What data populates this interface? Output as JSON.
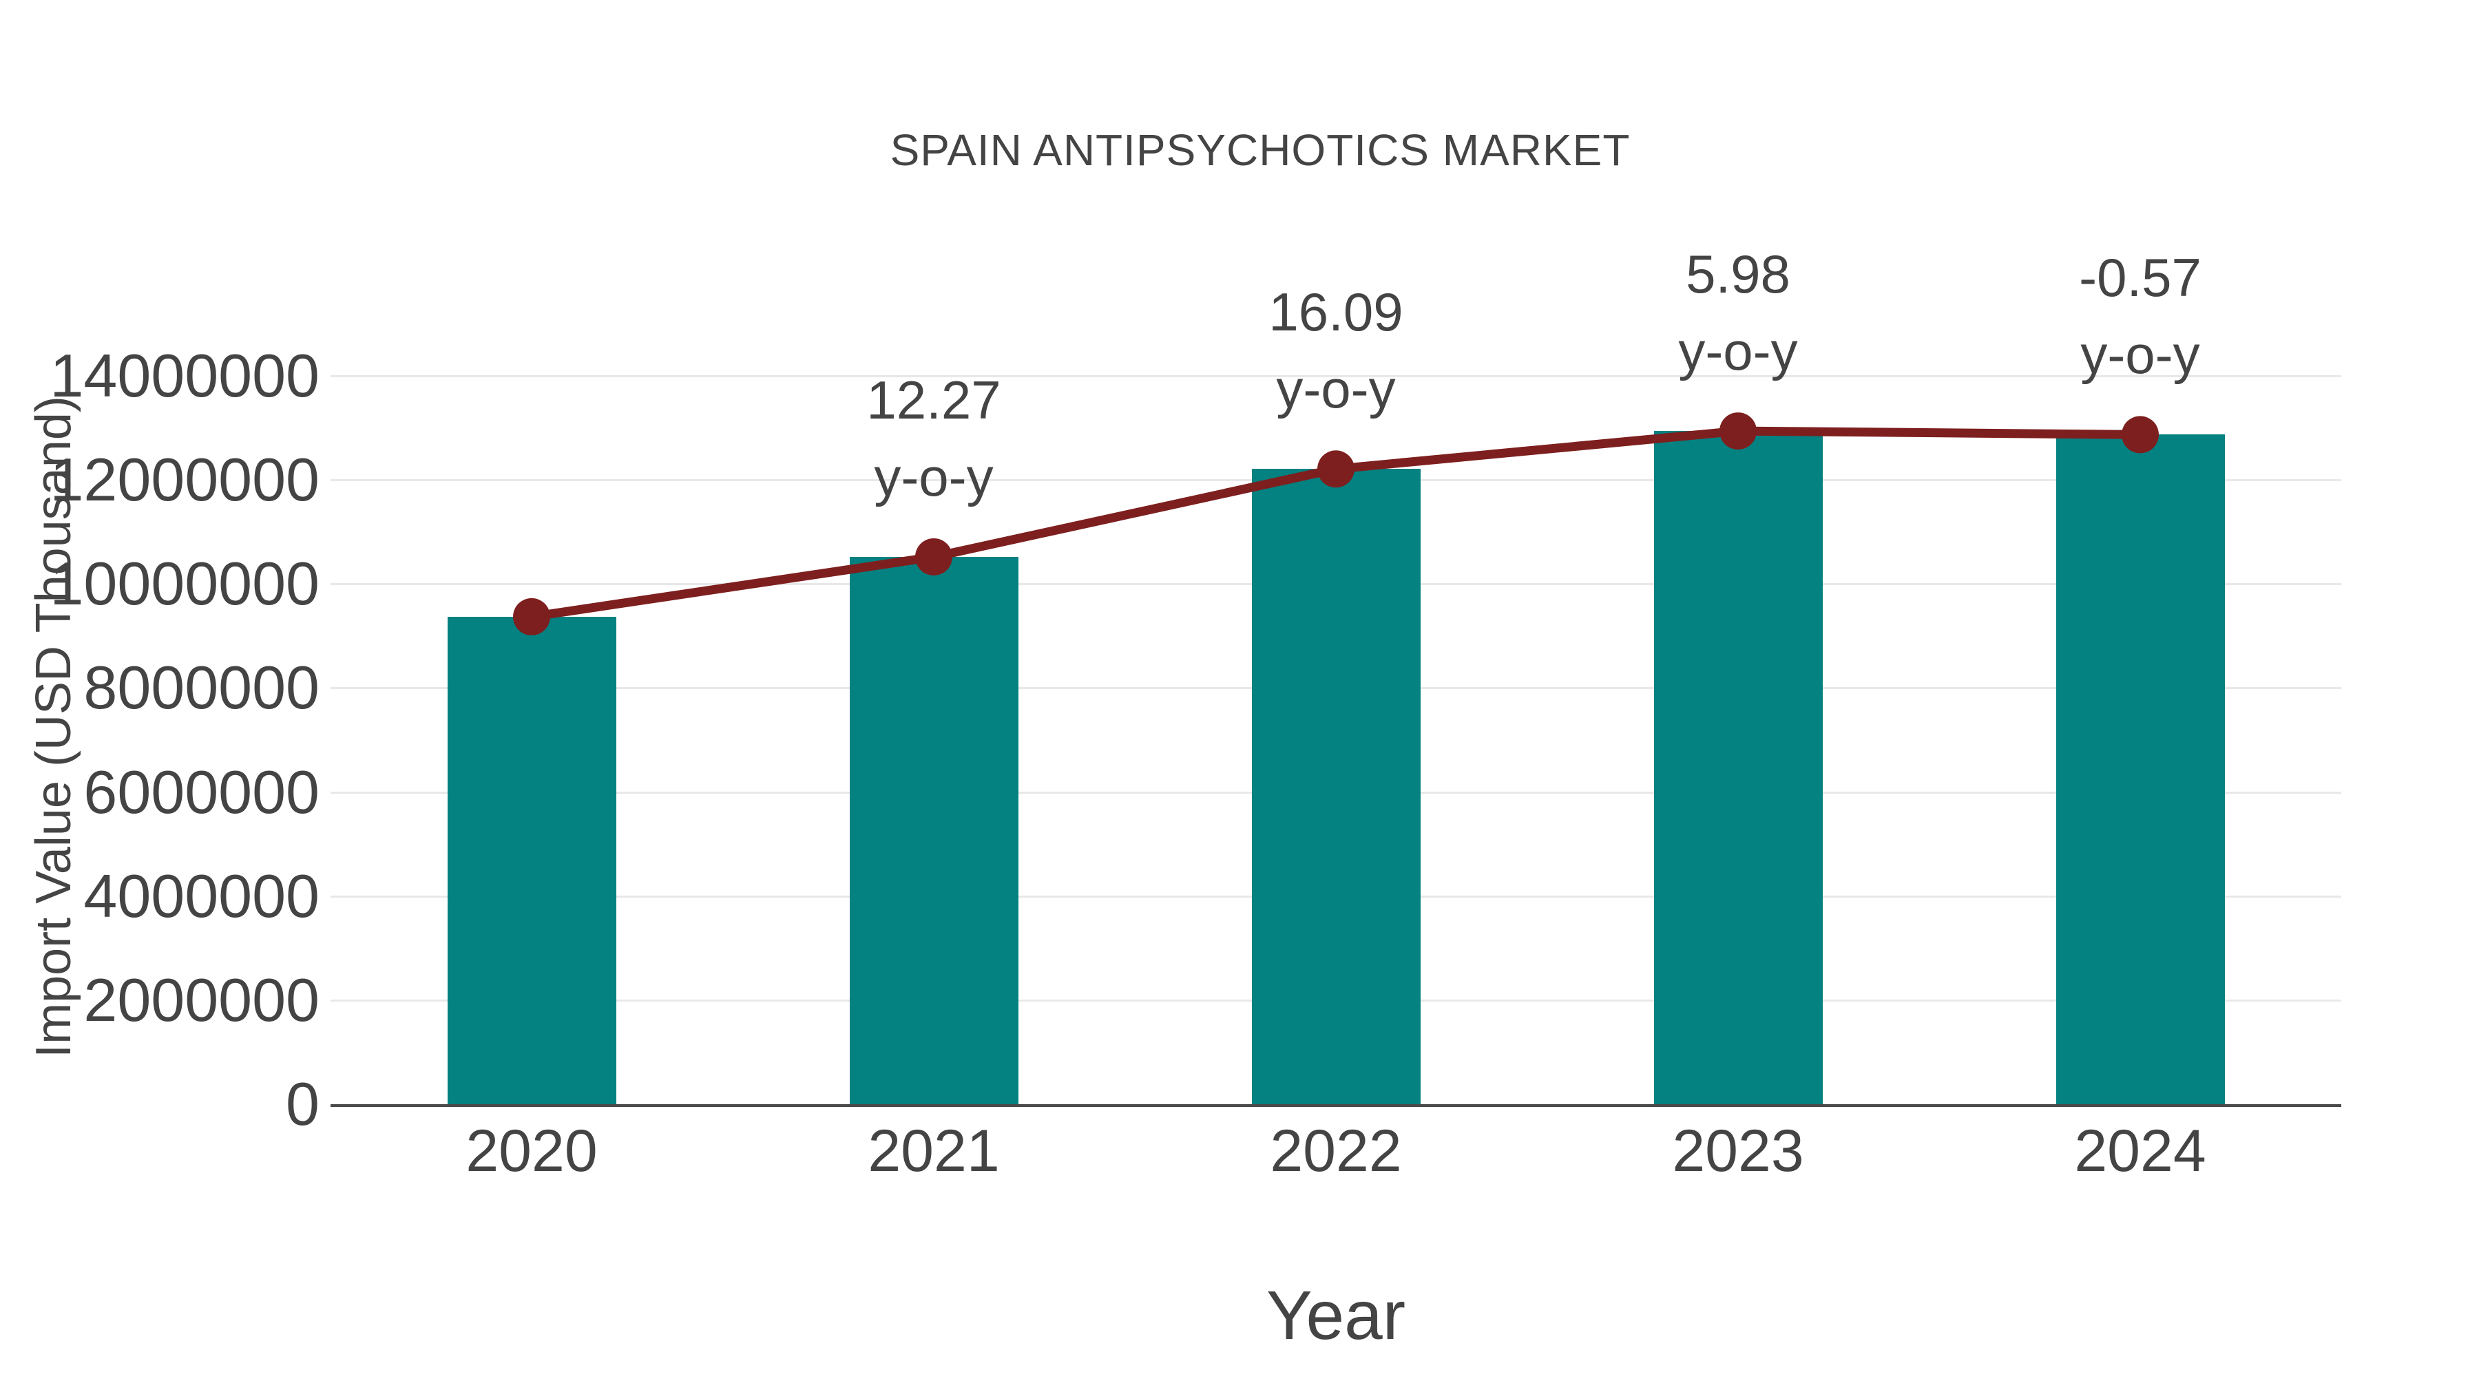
{
  "page": {
    "background": "#ffffff"
  },
  "chart_data": {
    "type": "bar+line",
    "title": "SPAIN ANTIPSYCHOTICS MARKET",
    "xlabel": "Year",
    "ylabel": "Import Value (USD Thousand)",
    "categories": [
      "2020",
      "2021",
      "2022",
      "2023",
      "2024"
    ],
    "series": [
      {
        "name": "import-value-bars",
        "type": "bar",
        "color": "#048181",
        "values": [
          9370000,
          10520000,
          12210000,
          12940000,
          12870000
        ]
      },
      {
        "name": "import-value-trend-line",
        "type": "line",
        "color": "#7E1F1F",
        "values": [
          9370000,
          10520000,
          12210000,
          12940000,
          12870000
        ]
      }
    ],
    "annotations": [
      {
        "x": "2021",
        "lines": [
          "12.27",
          "y-o-y"
        ]
      },
      {
        "x": "2022",
        "lines": [
          "16.09",
          "y-o-y"
        ]
      },
      {
        "x": "2023",
        "lines": [
          "5.98",
          "y-o-y"
        ]
      },
      {
        "x": "2024",
        "lines": [
          "-0.57",
          "y-o-y"
        ]
      }
    ],
    "yticks": [
      0,
      2000000,
      4000000,
      6000000,
      8000000,
      10000000,
      12000000,
      14000000
    ],
    "ylim": [
      0,
      14000000
    ],
    "grid": true,
    "legend": false,
    "colors": {
      "bar": "#048181",
      "line": "#7E1F1F",
      "text": "#444444",
      "gridline": "#e8e8e8",
      "axis_line": "#4a4a4a",
      "background": "#ffffff"
    }
  }
}
